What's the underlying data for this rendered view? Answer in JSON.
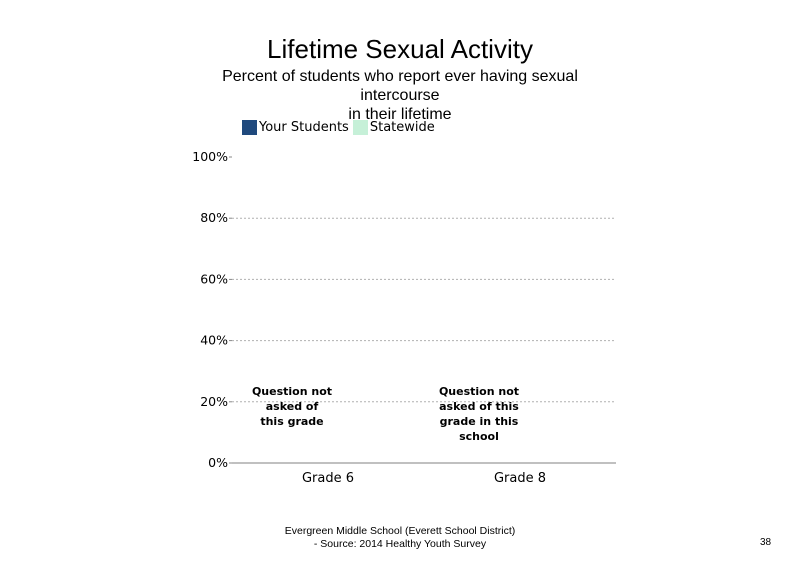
{
  "chart_data": {
    "type": "bar",
    "title": "Lifetime Sexual Activity",
    "subtitle": "Percent of students who report ever having sexual intercourse in their lifetime",
    "categories": [
      "Grade 6",
      "Grade 8"
    ],
    "series": [
      {
        "name": "Your Students",
        "color": "#1F497D",
        "values": [
          null,
          null
        ]
      },
      {
        "name": "Statewide",
        "color": "#C6F0D8",
        "values": [
          null,
          null
        ]
      }
    ],
    "y_ticks": [
      "0%",
      "20%",
      "40%",
      "60%",
      "80%",
      "100%"
    ],
    "ylim": [
      0,
      100
    ],
    "grid": true,
    "legend_position": "top",
    "notes": [
      {
        "category": "Grade 6",
        "text": "Question not asked of this grade"
      },
      {
        "category": "Grade 8",
        "text": "Question not asked of this grade in this school"
      }
    ]
  },
  "subtitle_lines": [
    "Percent of students who report ever having sexual",
    "intercourse",
    "in their lifetime"
  ],
  "note_lines": [
    [
      "Question not",
      "asked of",
      "this grade"
    ],
    [
      "Question not",
      "asked of this",
      "grade in this",
      "school"
    ]
  ],
  "footer": {
    "line1": "Evergreen Middle School (Everett School District)",
    "line2": "- Source: 2014 Healthy Youth Survey"
  },
  "page_number": "38"
}
